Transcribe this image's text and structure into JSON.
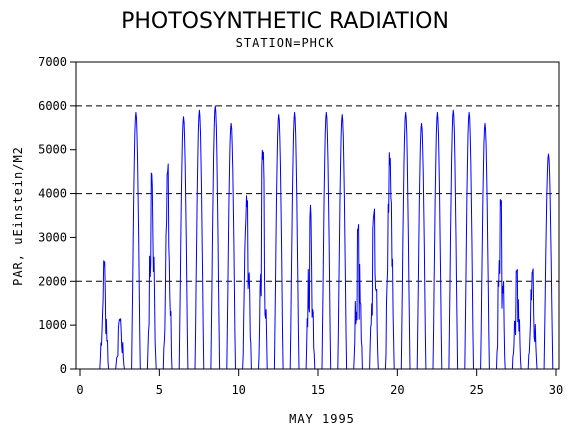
{
  "chart_data": {
    "type": "line",
    "title": "PHOTOSYNTHETIC RADIATION",
    "subtitle": "STATION=PHCK",
    "xlabel": "MAY 1995",
    "ylabel": "PAR, uEinstein/M2",
    "xlim": [
      0,
      30
    ],
    "ylim": [
      0,
      7000
    ],
    "x_ticks": [
      0,
      5,
      10,
      15,
      20,
      25,
      30
    ],
    "y_ticks": [
      0,
      1000,
      2000,
      3000,
      4000,
      5000,
      6000,
      7000
    ],
    "reference_lines": [
      2000,
      4000,
      6000
    ],
    "grid": false,
    "line_color": "#0000ff",
    "daily_peaks": [
      {
        "day": 1,
        "peak": 2500,
        "shape": "spiky"
      },
      {
        "day": 2,
        "peak": 1200,
        "shape": "spiky"
      },
      {
        "day": 3,
        "peak": 5850,
        "shape": "smooth"
      },
      {
        "day": 4,
        "peak": 4500,
        "shape": "spiky"
      },
      {
        "day": 5,
        "peak": 4750,
        "shape": "spiky"
      },
      {
        "day": 6,
        "peak": 5750,
        "shape": "smooth"
      },
      {
        "day": 7,
        "peak": 5900,
        "shape": "smooth"
      },
      {
        "day": 8,
        "peak": 6000,
        "shape": "smooth"
      },
      {
        "day": 9,
        "peak": 5600,
        "shape": "smooth"
      },
      {
        "day": 10,
        "peak": 4100,
        "shape": "spiky"
      },
      {
        "day": 11,
        "peak": 5050,
        "shape": "spiky"
      },
      {
        "day": 12,
        "peak": 5800,
        "shape": "smooth"
      },
      {
        "day": 13,
        "peak": 5850,
        "shape": "smooth"
      },
      {
        "day": 14,
        "peak": 3800,
        "shape": "spiky"
      },
      {
        "day": 15,
        "peak": 5850,
        "shape": "smooth"
      },
      {
        "day": 16,
        "peak": 5800,
        "shape": "smooth"
      },
      {
        "day": 17,
        "peak": 3500,
        "shape": "spiky"
      },
      {
        "day": 18,
        "peak": 3800,
        "shape": "spiky"
      },
      {
        "day": 19,
        "peak": 4950,
        "shape": "spiky"
      },
      {
        "day": 20,
        "peak": 5850,
        "shape": "smooth"
      },
      {
        "day": 21,
        "peak": 5600,
        "shape": "smooth"
      },
      {
        "day": 22,
        "peak": 5850,
        "shape": "smooth"
      },
      {
        "day": 23,
        "peak": 5900,
        "shape": "smooth"
      },
      {
        "day": 24,
        "peak": 5850,
        "shape": "smooth"
      },
      {
        "day": 25,
        "peak": 5600,
        "shape": "smooth"
      },
      {
        "day": 26,
        "peak": 3950,
        "shape": "spiky"
      },
      {
        "day": 27,
        "peak": 2350,
        "shape": "spiky"
      },
      {
        "day": 28,
        "peak": 2400,
        "shape": "spiky"
      },
      {
        "day": 29,
        "peak": 4900,
        "shape": "smooth"
      }
    ]
  }
}
